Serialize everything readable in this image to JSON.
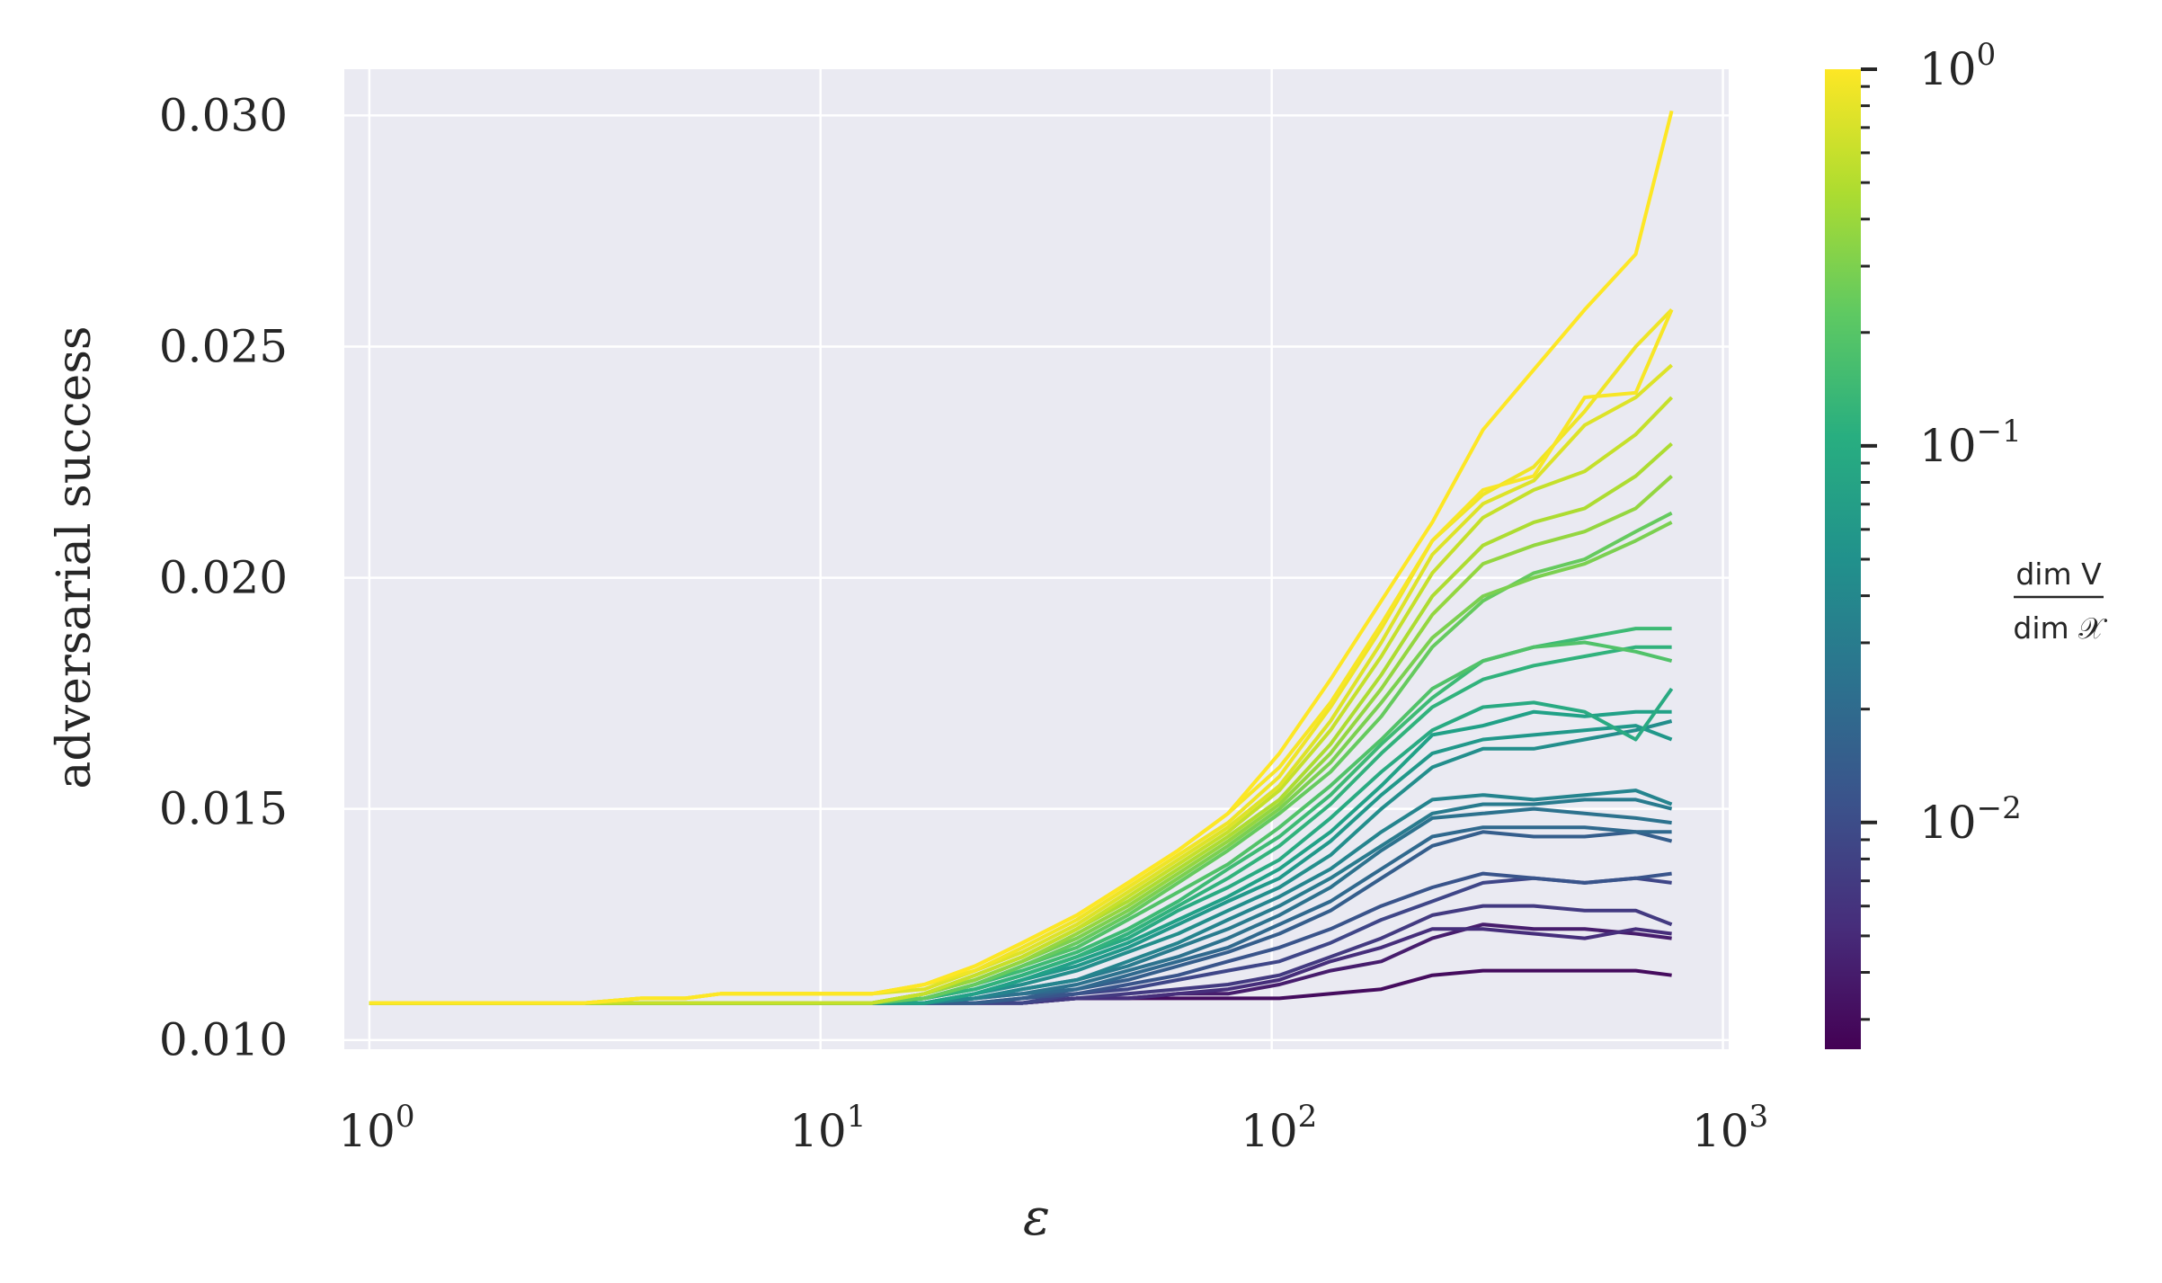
{
  "chart_data": {
    "type": "line",
    "title": "",
    "xlabel": "ε",
    "ylabel": "adversarial success",
    "xscale": "log",
    "xlim": [
      0.88,
      1030
    ],
    "ylim": [
      0.0098,
      0.031
    ],
    "grid": true,
    "x_ticks": [
      {
        "base": "10",
        "exp": "0",
        "value": 1
      },
      {
        "base": "10",
        "exp": "1",
        "value": 10
      },
      {
        "base": "10",
        "exp": "2",
        "value": 100
      },
      {
        "base": "10",
        "exp": "3",
        "value": 1000
      }
    ],
    "y_ticks": [
      {
        "label": "0.010",
        "value": 0.01
      },
      {
        "label": "0.015",
        "value": 0.015
      },
      {
        "label": "0.020",
        "value": 0.02
      },
      {
        "label": "0.025",
        "value": 0.025
      },
      {
        "label": "0.030",
        "value": 0.03
      }
    ],
    "colorbar": {
      "label_numerator": "dim V",
      "label_denominator": "dim 𝒳",
      "scale": "log",
      "range": [
        0.0025,
        1.0
      ],
      "colormap": "viridis",
      "ticks": [
        {
          "base": "10",
          "exp": "0",
          "value": 1.0
        },
        {
          "base": "10",
          "exp": "−1",
          "value": 0.1
        },
        {
          "base": "10",
          "exp": "−2",
          "value": 0.01
        }
      ]
    },
    "x": [
      1,
      2,
      3,
      4,
      5,
      6,
      8,
      10,
      13,
      17,
      22,
      28,
      37,
      48,
      62,
      80,
      104,
      135,
      175,
      227,
      294,
      381,
      494,
      641,
      770
    ],
    "series": [
      {
        "ratio": 0.003,
        "values": [
          0.0108,
          0.0108,
          0.0108,
          0.0108,
          0.0108,
          0.0108,
          0.0108,
          0.0108,
          0.0108,
          0.0108,
          0.0108,
          0.0108,
          0.0109,
          0.0109,
          0.0109,
          0.0109,
          0.0109,
          0.011,
          0.0111,
          0.0114,
          0.0115,
          0.0115,
          0.0115,
          0.0115,
          0.0114
        ]
      },
      {
        "ratio": 0.004,
        "values": [
          0.0108,
          0.0108,
          0.0108,
          0.0108,
          0.0108,
          0.0108,
          0.0108,
          0.0108,
          0.0108,
          0.0108,
          0.0108,
          0.0108,
          0.0109,
          0.0109,
          0.011,
          0.011,
          0.0112,
          0.0115,
          0.0117,
          0.0122,
          0.0125,
          0.0124,
          0.0124,
          0.0123,
          0.0122
        ]
      },
      {
        "ratio": 0.0055,
        "values": [
          0.0108,
          0.0108,
          0.0108,
          0.0108,
          0.0108,
          0.0108,
          0.0108,
          0.0108,
          0.0108,
          0.0108,
          0.0108,
          0.0108,
          0.0109,
          0.0109,
          0.011,
          0.0111,
          0.0113,
          0.0117,
          0.012,
          0.0124,
          0.0124,
          0.0123,
          0.0122,
          0.0124,
          0.0123
        ]
      },
      {
        "ratio": 0.007,
        "values": [
          0.0108,
          0.0108,
          0.0108,
          0.0108,
          0.0108,
          0.0108,
          0.0108,
          0.0108,
          0.0108,
          0.0108,
          0.0108,
          0.0108,
          0.0109,
          0.011,
          0.0111,
          0.0112,
          0.0114,
          0.0118,
          0.0122,
          0.0127,
          0.0129,
          0.0129,
          0.0128,
          0.0128,
          0.0125
        ]
      },
      {
        "ratio": 0.009,
        "values": [
          0.0108,
          0.0108,
          0.0108,
          0.0108,
          0.0108,
          0.0108,
          0.0108,
          0.0108,
          0.0108,
          0.0108,
          0.0108,
          0.0108,
          0.011,
          0.0111,
          0.0113,
          0.0115,
          0.0117,
          0.0121,
          0.0126,
          0.013,
          0.0134,
          0.0135,
          0.0134,
          0.0135,
          0.0134
        ]
      },
      {
        "ratio": 0.012,
        "values": [
          0.0108,
          0.0108,
          0.0108,
          0.0108,
          0.0108,
          0.0108,
          0.0108,
          0.0108,
          0.0108,
          0.0108,
          0.0108,
          0.0109,
          0.011,
          0.0112,
          0.0114,
          0.0117,
          0.012,
          0.0124,
          0.0129,
          0.0133,
          0.0136,
          0.0135,
          0.0134,
          0.0135,
          0.0136
        ]
      },
      {
        "ratio": 0.015,
        "values": [
          0.0108,
          0.0108,
          0.0108,
          0.0108,
          0.0108,
          0.0108,
          0.0108,
          0.0108,
          0.0108,
          0.0108,
          0.0108,
          0.0109,
          0.0111,
          0.0113,
          0.0116,
          0.0119,
          0.0123,
          0.0128,
          0.0135,
          0.0142,
          0.0145,
          0.0144,
          0.0144,
          0.0145,
          0.0143
        ]
      },
      {
        "ratio": 0.019,
        "values": [
          0.0108,
          0.0108,
          0.0108,
          0.0108,
          0.0108,
          0.0108,
          0.0108,
          0.0108,
          0.0108,
          0.0108,
          0.0109,
          0.011,
          0.0111,
          0.0114,
          0.0117,
          0.012,
          0.0125,
          0.013,
          0.0137,
          0.0144,
          0.0146,
          0.0146,
          0.0146,
          0.0145,
          0.0145
        ]
      },
      {
        "ratio": 0.024,
        "values": [
          0.0108,
          0.0108,
          0.0108,
          0.0108,
          0.0108,
          0.0108,
          0.0108,
          0.0108,
          0.0108,
          0.0108,
          0.0109,
          0.011,
          0.0112,
          0.0115,
          0.0118,
          0.0122,
          0.0127,
          0.0133,
          0.0141,
          0.0148,
          0.0149,
          0.015,
          0.0149,
          0.0148,
          0.0147
        ]
      },
      {
        "ratio": 0.03,
        "values": [
          0.0108,
          0.0108,
          0.0108,
          0.0108,
          0.0108,
          0.0108,
          0.0108,
          0.0108,
          0.0108,
          0.0108,
          0.0109,
          0.0111,
          0.0113,
          0.0116,
          0.012,
          0.0124,
          0.0129,
          0.0135,
          0.0142,
          0.0149,
          0.0151,
          0.0151,
          0.0152,
          0.0152,
          0.015
        ]
      },
      {
        "ratio": 0.038,
        "values": [
          0.0108,
          0.0108,
          0.0108,
          0.0108,
          0.0108,
          0.0108,
          0.0108,
          0.0108,
          0.0108,
          0.0108,
          0.0109,
          0.0111,
          0.0113,
          0.0117,
          0.0121,
          0.0126,
          0.0131,
          0.0137,
          0.0145,
          0.0152,
          0.0153,
          0.0152,
          0.0153,
          0.0154,
          0.0151
        ]
      },
      {
        "ratio": 0.048,
        "values": [
          0.0108,
          0.0108,
          0.0108,
          0.0108,
          0.0108,
          0.0108,
          0.0108,
          0.0108,
          0.0108,
          0.0108,
          0.011,
          0.0112,
          0.0115,
          0.0119,
          0.0123,
          0.0128,
          0.0133,
          0.014,
          0.015,
          0.0159,
          0.0163,
          0.0163,
          0.0165,
          0.0167,
          0.0169
        ]
      },
      {
        "ratio": 0.06,
        "values": [
          0.0108,
          0.0108,
          0.0108,
          0.0108,
          0.0108,
          0.0108,
          0.0108,
          0.0108,
          0.0108,
          0.0108,
          0.011,
          0.0113,
          0.0116,
          0.012,
          0.0125,
          0.013,
          0.0135,
          0.0143,
          0.0153,
          0.0162,
          0.0165,
          0.0166,
          0.0167,
          0.0168,
          0.0165
        ]
      },
      {
        "ratio": 0.075,
        "values": [
          0.0108,
          0.0108,
          0.0108,
          0.0108,
          0.0108,
          0.0108,
          0.0108,
          0.0108,
          0.0108,
          0.0108,
          0.011,
          0.0113,
          0.0117,
          0.0121,
          0.0126,
          0.0131,
          0.0137,
          0.0145,
          0.0155,
          0.0166,
          0.0168,
          0.0171,
          0.017,
          0.0171,
          0.0171
        ]
      },
      {
        "ratio": 0.095,
        "values": [
          0.0108,
          0.0108,
          0.0108,
          0.0108,
          0.0108,
          0.0108,
          0.0108,
          0.0108,
          0.0108,
          0.0109,
          0.0111,
          0.0114,
          0.0118,
          0.0122,
          0.0128,
          0.0133,
          0.0139,
          0.0148,
          0.0158,
          0.0167,
          0.0172,
          0.0173,
          0.0171,
          0.0165,
          0.0176
        ]
      },
      {
        "ratio": 0.12,
        "values": [
          0.0108,
          0.0108,
          0.0108,
          0.0108,
          0.0108,
          0.0108,
          0.0108,
          0.0108,
          0.0108,
          0.0109,
          0.0111,
          0.0114,
          0.0118,
          0.0123,
          0.0129,
          0.0135,
          0.0142,
          0.0151,
          0.0162,
          0.0172,
          0.0178,
          0.0181,
          0.0183,
          0.0185,
          0.0185
        ]
      },
      {
        "ratio": 0.15,
        "values": [
          0.0108,
          0.0108,
          0.0108,
          0.0108,
          0.0108,
          0.0108,
          0.0108,
          0.0108,
          0.0108,
          0.0109,
          0.0112,
          0.0115,
          0.0119,
          0.0124,
          0.013,
          0.0137,
          0.0144,
          0.0153,
          0.0164,
          0.0174,
          0.0182,
          0.0185,
          0.0187,
          0.0189,
          0.0189
        ]
      },
      {
        "ratio": 0.19,
        "values": [
          0.0108,
          0.0108,
          0.0108,
          0.0108,
          0.0108,
          0.0108,
          0.0108,
          0.0108,
          0.0108,
          0.0109,
          0.0112,
          0.0116,
          0.012,
          0.0126,
          0.0132,
          0.0138,
          0.0146,
          0.0155,
          0.0165,
          0.0176,
          0.0182,
          0.0185,
          0.0186,
          0.0184,
          0.0182
        ]
      },
      {
        "ratio": 0.24,
        "values": [
          0.0108,
          0.0108,
          0.0108,
          0.0108,
          0.0108,
          0.0108,
          0.0108,
          0.0108,
          0.0108,
          0.0109,
          0.0112,
          0.0116,
          0.0121,
          0.0127,
          0.0134,
          0.0141,
          0.0149,
          0.0158,
          0.017,
          0.0185,
          0.0195,
          0.0201,
          0.0204,
          0.021,
          0.0214
        ]
      },
      {
        "ratio": 0.3,
        "values": [
          0.0108,
          0.0108,
          0.0108,
          0.0108,
          0.0108,
          0.0108,
          0.0108,
          0.0108,
          0.0108,
          0.011,
          0.0113,
          0.0117,
          0.0122,
          0.0128,
          0.0135,
          0.0142,
          0.015,
          0.016,
          0.0173,
          0.0187,
          0.0196,
          0.02,
          0.0203,
          0.0208,
          0.0212
        ]
      },
      {
        "ratio": 0.38,
        "values": [
          0.0108,
          0.0108,
          0.0108,
          0.0108,
          0.0108,
          0.0108,
          0.0108,
          0.0108,
          0.0108,
          0.011,
          0.0113,
          0.0117,
          0.0123,
          0.0129,
          0.0136,
          0.0143,
          0.0151,
          0.0162,
          0.0176,
          0.0192,
          0.0203,
          0.0207,
          0.021,
          0.0215,
          0.0222
        ]
      },
      {
        "ratio": 0.48,
        "values": [
          0.0108,
          0.0108,
          0.0108,
          0.0108,
          0.0108,
          0.0108,
          0.0108,
          0.0108,
          0.0108,
          0.011,
          0.0114,
          0.0118,
          0.0124,
          0.013,
          0.0137,
          0.0144,
          0.0152,
          0.0164,
          0.0179,
          0.0196,
          0.0207,
          0.0212,
          0.0215,
          0.0222,
          0.0229
        ]
      },
      {
        "ratio": 0.6,
        "values": [
          0.0108,
          0.0108,
          0.0108,
          0.0108,
          0.0108,
          0.0108,
          0.0108,
          0.0108,
          0.0108,
          0.011,
          0.0114,
          0.0118,
          0.0124,
          0.0131,
          0.0138,
          0.0145,
          0.0154,
          0.0167,
          0.0183,
          0.0201,
          0.0213,
          0.0219,
          0.0223,
          0.0231,
          0.0239
        ]
      },
      {
        "ratio": 0.75,
        "values": [
          0.0108,
          0.0108,
          0.0108,
          0.0109,
          0.0109,
          0.011,
          0.011,
          0.011,
          0.011,
          0.0111,
          0.0115,
          0.0119,
          0.0125,
          0.0132,
          0.0139,
          0.0146,
          0.0155,
          0.0169,
          0.0186,
          0.0205,
          0.0216,
          0.0221,
          0.0233,
          0.0239,
          0.0246
        ]
      },
      {
        "ratio": 0.88,
        "values": [
          0.0108,
          0.0108,
          0.0108,
          0.0109,
          0.0109,
          0.011,
          0.011,
          0.011,
          0.011,
          0.0112,
          0.0115,
          0.012,
          0.0126,
          0.0133,
          0.014,
          0.0147,
          0.0157,
          0.0172,
          0.0189,
          0.0208,
          0.0218,
          0.0224,
          0.0236,
          0.025,
          0.0258
        ]
      },
      {
        "ratio": 0.95,
        "values": [
          0.0108,
          0.0108,
          0.0108,
          0.0109,
          0.0109,
          0.011,
          0.011,
          0.011,
          0.011,
          0.0112,
          0.0116,
          0.0121,
          0.0127,
          0.0134,
          0.0141,
          0.0149,
          0.0159,
          0.0173,
          0.019,
          0.0208,
          0.0219,
          0.0222,
          0.0239,
          0.024,
          0.0258
        ]
      },
      {
        "ratio": 1.0,
        "values": [
          0.0108,
          0.0108,
          0.0108,
          0.0109,
          0.0109,
          0.011,
          0.011,
          0.011,
          0.011,
          0.0112,
          0.0116,
          0.0121,
          0.0127,
          0.0134,
          0.0141,
          0.0149,
          0.0162,
          0.0178,
          0.0195,
          0.0212,
          0.0232,
          0.0245,
          0.0258,
          0.027,
          0.0301
        ]
      }
    ]
  }
}
